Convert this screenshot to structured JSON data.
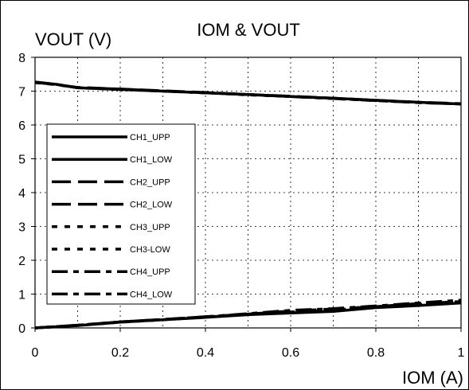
{
  "chart_data": {
    "type": "line",
    "title": "IOM & VOUT",
    "xlabel": "IOM (A)",
    "ylabel": "VOUT (V)",
    "xlim": [
      0,
      1
    ],
    "ylim": [
      0,
      8
    ],
    "x_ticks": [
      "0",
      "0.2",
      "0.4",
      "0.6",
      "0.8",
      "1"
    ],
    "y_ticks": [
      "0",
      "1",
      "2",
      "3",
      "4",
      "5",
      "6",
      "7",
      "8"
    ],
    "grid": "dotted",
    "legend_position": "left",
    "series": [
      {
        "name": "CH1_UPP",
        "style": "solid",
        "x": [
          0,
          0.05,
          0.1,
          0.2,
          0.3,
          0.4,
          0.5,
          0.6,
          0.7,
          0.8,
          0.9,
          1.0
        ],
        "y": [
          7.27,
          7.2,
          7.1,
          7.05,
          7.0,
          6.95,
          6.9,
          6.84,
          6.79,
          6.73,
          6.67,
          6.62
        ]
      },
      {
        "name": "CH1_LOW",
        "style": "solid",
        "x": [
          0,
          0.1,
          0.2,
          0.3,
          0.4,
          0.5,
          0.6,
          0.7,
          0.8,
          0.9,
          1.0
        ],
        "y": [
          0.0,
          0.07,
          0.17,
          0.24,
          0.31,
          0.39,
          0.44,
          0.49,
          0.6,
          0.66,
          0.74
        ]
      },
      {
        "name": "CH2_UPP",
        "style": "dash",
        "x": [
          0,
          0.05,
          0.1,
          0.2,
          0.3,
          0.4,
          0.5,
          0.6,
          0.7,
          0.8,
          0.9,
          1.0
        ],
        "y": [
          7.26,
          7.19,
          7.11,
          7.06,
          7.01,
          6.96,
          6.9,
          6.85,
          6.79,
          6.73,
          6.67,
          6.63
        ]
      },
      {
        "name": "CH2_LOW",
        "style": "dash",
        "x": [
          0,
          0.1,
          0.2,
          0.3,
          0.4,
          0.5,
          0.6,
          0.7,
          0.8,
          0.9,
          1.0
        ],
        "y": [
          0.0,
          0.08,
          0.18,
          0.25,
          0.33,
          0.41,
          0.5,
          0.56,
          0.63,
          0.72,
          0.78
        ]
      },
      {
        "name": "CH3_UPP",
        "style": "dot",
        "x": [
          0,
          0.05,
          0.1,
          0.2,
          0.3,
          0.4,
          0.5,
          0.6,
          0.7,
          0.8,
          0.9,
          1.0
        ],
        "y": [
          7.25,
          7.19,
          7.1,
          7.05,
          7.0,
          6.95,
          6.89,
          6.84,
          6.78,
          6.72,
          6.66,
          6.62
        ]
      },
      {
        "name": "CH3-LOW",
        "style": "dot",
        "x": [
          0,
          0.1,
          0.2,
          0.3,
          0.4,
          0.5,
          0.6,
          0.7,
          0.8,
          0.9,
          1.0
        ],
        "y": [
          0.0,
          0.07,
          0.17,
          0.24,
          0.32,
          0.4,
          0.47,
          0.53,
          0.62,
          0.69,
          0.76
        ]
      },
      {
        "name": "CH4_UPP",
        "style": "dashdot",
        "x": [
          0,
          0.05,
          0.1,
          0.2,
          0.3,
          0.4,
          0.5,
          0.6,
          0.7,
          0.8,
          0.9,
          1.0
        ],
        "y": [
          7.26,
          7.2,
          7.1,
          7.06,
          7.0,
          6.95,
          6.9,
          6.84,
          6.78,
          6.72,
          6.66,
          6.62
        ]
      },
      {
        "name": "CH4_LOW",
        "style": "dashdot",
        "x": [
          0,
          0.1,
          0.2,
          0.3,
          0.4,
          0.5,
          0.6,
          0.7,
          0.8,
          0.9,
          1.0
        ],
        "y": [
          0.0,
          0.08,
          0.18,
          0.25,
          0.33,
          0.42,
          0.52,
          0.57,
          0.65,
          0.74,
          0.82
        ]
      }
    ]
  }
}
